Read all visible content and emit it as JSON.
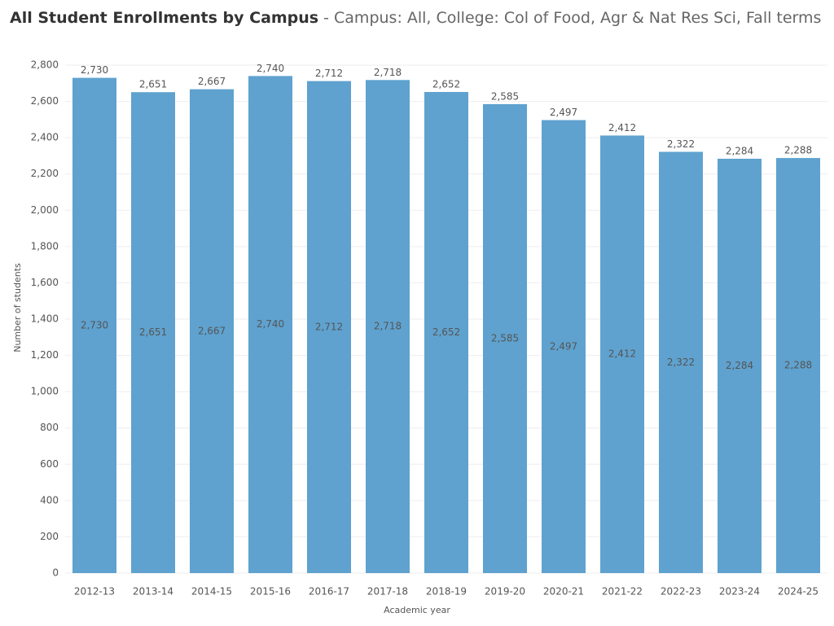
{
  "chart_data": {
    "type": "bar",
    "title": "All Student Enrollments by Campus",
    "subtitle": "- Campus: All, College: Col of Food, Agr & Nat Res Sci, Fall terms",
    "x_label": "Academic year",
    "y_label": "Number of students",
    "categories": [
      "2012-13",
      "2013-14",
      "2014-15",
      "2015-16",
      "2016-17",
      "2017-18",
      "2018-19",
      "2019-20",
      "2020-21",
      "2021-22",
      "2022-23",
      "2023-24",
      "2024-25"
    ],
    "values": [
      2730,
      2651,
      2667,
      2740,
      2712,
      2718,
      2652,
      2585,
      2497,
      2412,
      2322,
      2284,
      2288
    ],
    "value_labels": [
      "2,730",
      "2,651",
      "2,667",
      "2,740",
      "2,712",
      "2,718",
      "2,652",
      "2,585",
      "2,497",
      "2,412",
      "2,322",
      "2,284",
      "2,288"
    ],
    "color": "#5fa2cf",
    "ylim": [
      0,
      2800
    ],
    "yticks": [
      0,
      200,
      400,
      600,
      800,
      {
        "value": 1000,
        "label": "1,000"
      },
      {
        "value": 1200,
        "label": "1,200"
      },
      {
        "value": 1400,
        "label": "1,400"
      },
      {
        "value": 1600,
        "label": "1,600"
      },
      {
        "value": 1800,
        "label": "1,800"
      },
      {
        "value": 2000,
        "label": "2,000"
      },
      {
        "value": 2200,
        "label": "2,200"
      },
      {
        "value": 2400,
        "label": "2,400"
      },
      {
        "value": 2600,
        "label": "2,600"
      },
      {
        "value": 2800,
        "label": "2,800"
      }
    ],
    "grid": true
  }
}
